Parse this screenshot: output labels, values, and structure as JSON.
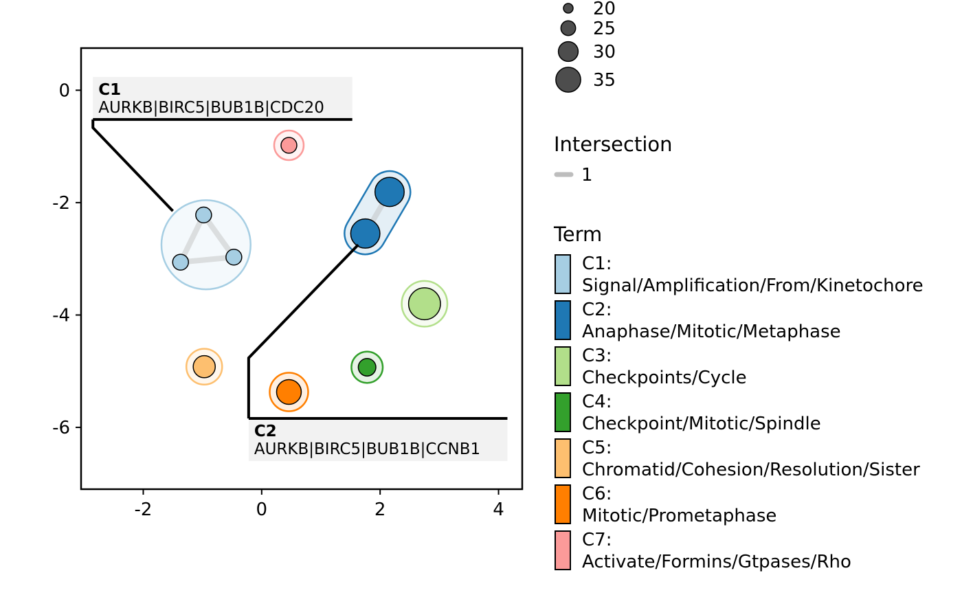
{
  "chart_data": {
    "type": "scatter",
    "xlim": [
      -3.05,
      4.4
    ],
    "ylim": [
      -7.1,
      0.75
    ],
    "x_ticks": [
      -2,
      0,
      2,
      4
    ],
    "y_ticks": [
      0,
      -2,
      -4,
      -6
    ],
    "x_tick_labels": [
      "-2",
      "0",
      "2",
      "4"
    ],
    "y_tick_labels": [
      "0",
      "-2",
      "-4",
      "-6"
    ],
    "grid": false,
    "terms": [
      {
        "id": "C1",
        "label": "C1:",
        "name": "Signal/Amplification/From/Kinetochore",
        "color": "#A6CEE3"
      },
      {
        "id": "C2",
        "label": "C2:",
        "name": "Anaphase/Mitotic/Metaphase",
        "color": "#1F78B4"
      },
      {
        "id": "C3",
        "label": "C3:",
        "name": "Checkpoints/Cycle",
        "color": "#B2DF8A"
      },
      {
        "id": "C4",
        "label": "C4:",
        "name": "Checkpoint/Mitotic/Spindle",
        "color": "#33A02C"
      },
      {
        "id": "C5",
        "label": "C5:",
        "name": "Chromatid/Cohesion/Resolution/Sister",
        "color": "#FDBF6F"
      },
      {
        "id": "C6",
        "label": "C6:",
        "name": "Mitotic/Prometaphase",
        "color": "#FF7F00"
      },
      {
        "id": "C7",
        "label": "C7:",
        "name": "Activate/Formins/Gtpases/Rho",
        "color": "#FB9A99"
      }
    ],
    "points": [
      {
        "term": "C1",
        "x": -0.98,
        "y": -2.22,
        "size": 20
      },
      {
        "term": "C1",
        "x": -1.37,
        "y": -3.06,
        "size": 20
      },
      {
        "term": "C1",
        "x": -0.47,
        "y": -2.97,
        "size": 20
      },
      {
        "term": "C2",
        "x": 2.16,
        "y": -1.81,
        "size": 35
      },
      {
        "term": "C2",
        "x": 1.75,
        "y": -2.55,
        "size": 35
      },
      {
        "term": "C3",
        "x": 2.75,
        "y": -3.8,
        "size": 38
      },
      {
        "term": "C4",
        "x": 1.78,
        "y": -4.93,
        "size": 22
      },
      {
        "term": "C5",
        "x": -0.97,
        "y": -4.92,
        "size": 27
      },
      {
        "term": "C6",
        "x": 0.46,
        "y": -5.37,
        "size": 30
      },
      {
        "term": "C7",
        "x": 0.46,
        "y": -0.98,
        "size": 20
      }
    ],
    "edges": [
      {
        "from": 0,
        "to": 1,
        "intersection": 1
      },
      {
        "from": 1,
        "to": 2,
        "intersection": 1
      },
      {
        "from": 2,
        "to": 0,
        "intersection": 1
      },
      {
        "from": 3,
        "to": 4,
        "intersection": 1
      }
    ],
    "cluster_labels": [
      {
        "name": "C1",
        "genes": "AURKB|BIRC5|BUB1B|CDC20",
        "box_x": -2.85,
        "box_y": -0.52,
        "line_end_x": 1.53,
        "pointer_x": -1.5,
        "pointer_y": -2.15
      },
      {
        "name": "C2",
        "genes": "AURKB|BIRC5|BUB1B|CCNB1",
        "box_x": -0.22,
        "box_y": -5.84,
        "line_end_x": 4.15,
        "pointer_x": 1.63,
        "pointer_y": -2.75
      }
    ],
    "size_legend": {
      "values": [
        20,
        25,
        30,
        35
      ],
      "labels": [
        "20",
        "25",
        "30",
        "35"
      ],
      "placement": "top-right"
    },
    "intersection_legend": {
      "title": "Intersection",
      "values": [
        "1"
      ]
    },
    "term_legend": {
      "title": "Term",
      "placement": "right"
    }
  }
}
